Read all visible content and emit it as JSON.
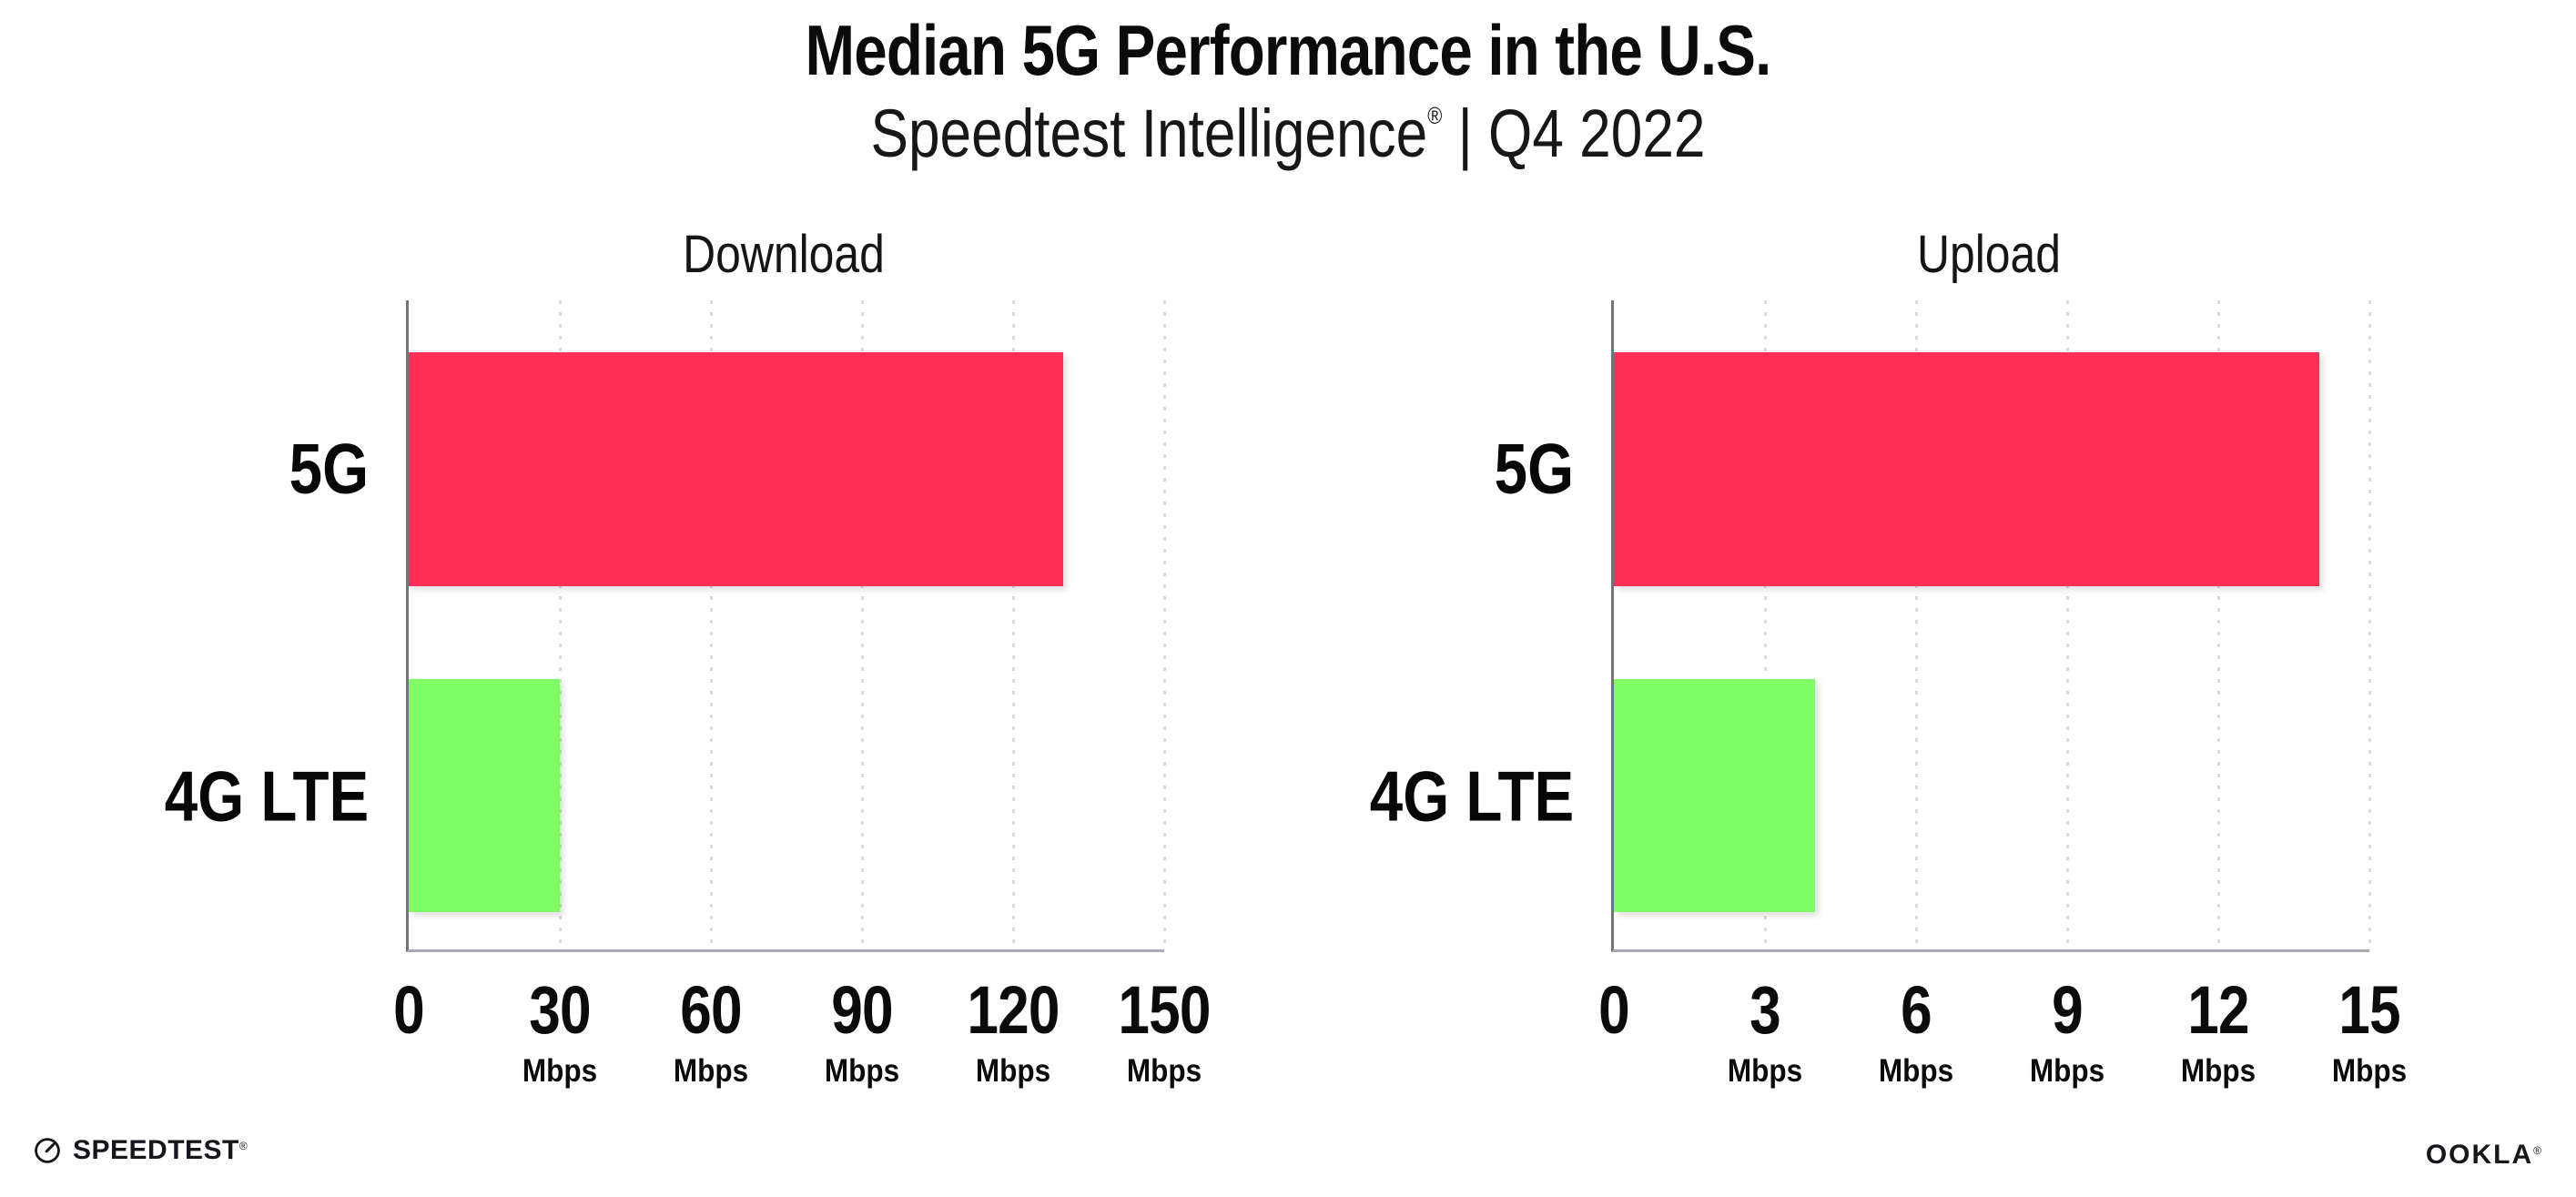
{
  "header": {
    "title": "Median 5G Performance in the U.S.",
    "subtitle_brand": "Speedtest Intelligence",
    "subtitle_reg": "®",
    "subtitle_rest": " | Q4 2022"
  },
  "chart_data": [
    {
      "type": "bar",
      "orientation": "horizontal",
      "title": "Download",
      "categories": [
        "5G",
        "4G LTE"
      ],
      "values": [
        130,
        30
      ],
      "unit": "Mbps",
      "xlabel": "",
      "ylabel": "",
      "xlim": [
        0,
        150
      ],
      "ticks": [
        0,
        30,
        60,
        90,
        120,
        150
      ],
      "bar_colors": [
        "#ff2e57",
        "#7ffc66"
      ],
      "grid": "dotted-vertical",
      "legend": "none"
    },
    {
      "type": "bar",
      "orientation": "horizontal",
      "title": "Upload",
      "categories": [
        "5G",
        "4G LTE"
      ],
      "values": [
        14,
        4
      ],
      "unit": "Mbps",
      "xlabel": "",
      "ylabel": "",
      "xlim": [
        0,
        15
      ],
      "ticks": [
        0,
        3,
        6,
        9,
        12,
        15
      ],
      "bar_colors": [
        "#ff2e57",
        "#7ffc66"
      ],
      "grid": "dotted-vertical",
      "legend": "none"
    }
  ],
  "colors": {
    "bar_5g": "#ff2e57",
    "bar_4g_lte": "#7ffc66",
    "gridline": "#d9dae4",
    "y_axis_spine": "#73737e",
    "x_axis_line": "#a9a9b1",
    "text": "#0b0b0c"
  },
  "footer": {
    "speedtest_label": "SPEEDTEST",
    "speedtest_reg": "®",
    "ookla_label": "OOKLA",
    "ookla_reg": "®"
  }
}
